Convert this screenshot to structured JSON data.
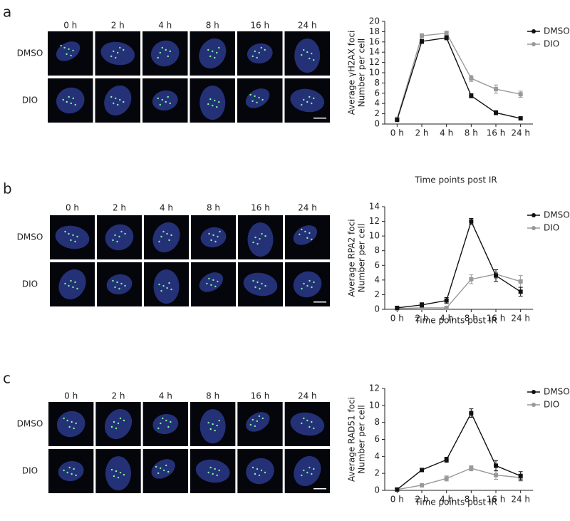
{
  "panels": [
    {
      "letter": "a",
      "columns": [
        "0 h",
        "2 h",
        "4 h",
        "8 h",
        "16 h",
        "24 h"
      ],
      "rows": [
        "DMSO",
        "DIO"
      ]
    },
    {
      "letter": "b",
      "columns": [
        "0 h",
        "2 h",
        "4 h",
        "8 h",
        "16 h",
        "24 h"
      ],
      "rows": [
        "DMSO",
        "DIO"
      ]
    },
    {
      "letter": "c",
      "columns": [
        "0 h",
        "2 h",
        "4 h",
        "8 h",
        "16 h",
        "24 h"
      ],
      "rows": [
        "DMSO",
        "DIO"
      ]
    }
  ],
  "chart_data": [
    {
      "type": "line",
      "ylabel": [
        "Average γH2AX foci",
        "Number per cell"
      ],
      "xlabel": "Time points post IR",
      "categories": [
        "0 h",
        "2 h",
        "4 h",
        "8 h",
        "16 h",
        "24 h"
      ],
      "series": [
        {
          "name": "DMSO",
          "color": "#111111",
          "values": [
            0.8,
            16.1,
            16.8,
            5.5,
            2.2,
            1.1
          ],
          "errors": [
            0.2,
            0.4,
            0.4,
            0.4,
            0.4,
            0.3
          ]
        },
        {
          "name": "DIO",
          "color": "#999999",
          "values": [
            1.0,
            17.2,
            17.7,
            8.9,
            6.8,
            5.8
          ],
          "errors": [
            0.2,
            0.4,
            0.4,
            0.6,
            0.8,
            0.6
          ]
        }
      ],
      "ylim": [
        0,
        20
      ],
      "yticks": [
        0,
        2,
        4,
        6,
        8,
        10,
        12,
        14,
        16,
        18,
        20
      ]
    },
    {
      "type": "line",
      "ylabel": [
        "Average RPA2 foci",
        "Number per cell"
      ],
      "xlabel": "Time points post IR",
      "categories": [
        "0 h",
        "2 h",
        "4 h",
        "8 h",
        "16 h",
        "24 h"
      ],
      "series": [
        {
          "name": "DMSO",
          "color": "#111111",
          "values": [
            0.2,
            0.6,
            1.2,
            12.0,
            4.6,
            2.4
          ],
          "errors": [
            0.1,
            0.3,
            0.4,
            0.4,
            0.8,
            0.6
          ]
        },
        {
          "name": "DIO",
          "color": "#999999",
          "values": [
            0.1,
            0.2,
            0.2,
            4.1,
            4.8,
            3.8
          ],
          "errors": [
            0.1,
            0.1,
            0.1,
            0.6,
            0.6,
            0.8
          ]
        }
      ],
      "ylim": [
        0,
        14
      ],
      "yticks": [
        0,
        2,
        4,
        6,
        8,
        10,
        12,
        14
      ]
    },
    {
      "type": "line",
      "ylabel": [
        "Average RAD51 foci",
        "Number per cell"
      ],
      "xlabel": "Time points post IR",
      "categories": [
        "0 h",
        "2 h",
        "4 h",
        "8 h",
        "16 h",
        "24 h"
      ],
      "series": [
        {
          "name": "DMSO",
          "color": "#111111",
          "values": [
            0.1,
            2.4,
            3.6,
            9.1,
            2.9,
            1.7
          ],
          "errors": [
            0.1,
            0.2,
            0.3,
            0.5,
            0.6,
            0.5
          ]
        },
        {
          "name": "DIO",
          "color": "#999999",
          "values": [
            0.1,
            0.6,
            1.4,
            2.6,
            1.8,
            1.5
          ],
          "errors": [
            0.1,
            0.2,
            0.3,
            0.3,
            0.5,
            0.4
          ]
        }
      ],
      "ylim": [
        0,
        12
      ],
      "yticks": [
        0,
        2,
        4,
        6,
        8,
        10,
        12
      ]
    }
  ]
}
